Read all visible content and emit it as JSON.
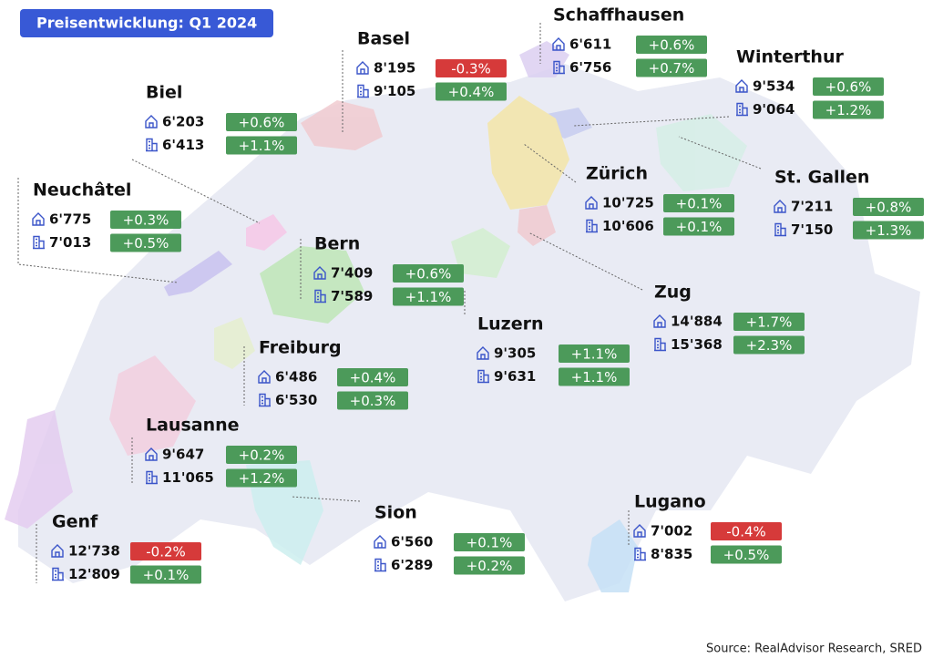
{
  "title": "Preisentwicklung: Q1 2024",
  "source": "Source: RealAdvisor Research, SRED",
  "cities": [
    {
      "name": "Basel",
      "house": {
        "price": "8'195",
        "change": "-0.3%"
      },
      "apartment": {
        "price": "9'105",
        "change": "+0.4%"
      }
    },
    {
      "name": "Schaffhausen",
      "house": {
        "price": "6'611",
        "change": "+0.6%"
      },
      "apartment": {
        "price": "6'756",
        "change": "+0.7%"
      }
    },
    {
      "name": "Winterthur",
      "house": {
        "price": "9'534",
        "change": "+0.6%"
      },
      "apartment": {
        "price": "9'064",
        "change": "+1.2%"
      }
    },
    {
      "name": "Biel",
      "house": {
        "price": "6'203",
        "change": "+0.6%"
      },
      "apartment": {
        "price": "6'413",
        "change": "+1.1%"
      }
    },
    {
      "name": "Neuchâtel",
      "house": {
        "price": "6'775",
        "change": "+0.3%"
      },
      "apartment": {
        "price": "7'013",
        "change": "+0.5%"
      }
    },
    {
      "name": "Zürich",
      "house": {
        "price": "10'725",
        "change": "+0.1%"
      },
      "apartment": {
        "price": "10'606",
        "change": "+0.1%"
      }
    },
    {
      "name": "St. Gallen",
      "house": {
        "price": "7'211",
        "change": "+0.8%"
      },
      "apartment": {
        "price": "7'150",
        "change": "+1.3%"
      }
    },
    {
      "name": "Bern",
      "house": {
        "price": "7'409",
        "change": "+0.6%"
      },
      "apartment": {
        "price": "7'589",
        "change": "+1.1%"
      }
    },
    {
      "name": "Zug",
      "house": {
        "price": "14'884",
        "change": "+1.7%"
      },
      "apartment": {
        "price": "15'368",
        "change": "+2.3%"
      }
    },
    {
      "name": "Luzern",
      "house": {
        "price": "9'305",
        "change": "+1.1%"
      },
      "apartment": {
        "price": "9'631",
        "change": "+1.1%"
      }
    },
    {
      "name": "Freiburg",
      "house": {
        "price": "6'486",
        "change": "+0.4%"
      },
      "apartment": {
        "price": "6'530",
        "change": "+0.3%"
      }
    },
    {
      "name": "Lausanne",
      "house": {
        "price": "9'647",
        "change": "+0.2%"
      },
      "apartment": {
        "price": "11'065",
        "change": "+1.2%"
      }
    },
    {
      "name": "Sion",
      "house": {
        "price": "6'560",
        "change": "+0.1%"
      },
      "apartment": {
        "price": "6'289",
        "change": "+0.2%"
      }
    },
    {
      "name": "Lugano",
      "house": {
        "price": "7'002",
        "change": "-0.4%"
      },
      "apartment": {
        "price": "8'835",
        "change": "+0.5%"
      }
    },
    {
      "name": "Genf",
      "house": {
        "price": "12'738",
        "change": "-0.2%"
      },
      "apartment": {
        "price": "12'809",
        "change": "+0.1%"
      }
    }
  ]
}
